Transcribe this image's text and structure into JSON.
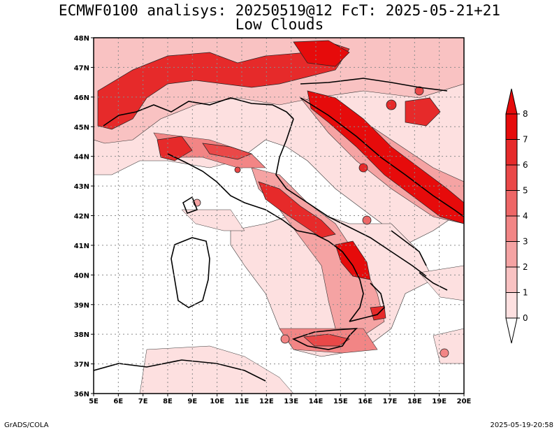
{
  "title_line1": "ECMWF0100 analisys: 20250519@12 FcT: 2025-05-21+21",
  "title_line2": "Low Clouds",
  "footer_left": "GrADS/COLA",
  "footer_right": "2025-05-19-20:58",
  "map": {
    "lon_labels": [
      "5E",
      "6E",
      "7E",
      "8E",
      "9E",
      "10E",
      "11E",
      "12E",
      "13E",
      "14E",
      "15E",
      "16E",
      "17E",
      "18E",
      "19E",
      "20E"
    ],
    "lat_labels": [
      "48N",
      "47N",
      "46N",
      "45N",
      "44N",
      "43N",
      "42N",
      "41N",
      "40N",
      "39N",
      "38N",
      "37N",
      "36N"
    ],
    "lon_range": [
      5,
      20
    ],
    "lat_range": [
      36,
      48
    ],
    "gridlines": "dotted"
  },
  "colorbar": {
    "levels": [
      "0",
      "1",
      "2",
      "3",
      "4",
      "5",
      "6",
      "7",
      "8"
    ],
    "colors": [
      "#ffffff",
      "#fde0e0",
      "#f9c2c2",
      "#f5a3a3",
      "#f28585",
      "#ee6666",
      "#ea4848",
      "#e62a2a",
      "#e60b0b"
    ]
  }
}
